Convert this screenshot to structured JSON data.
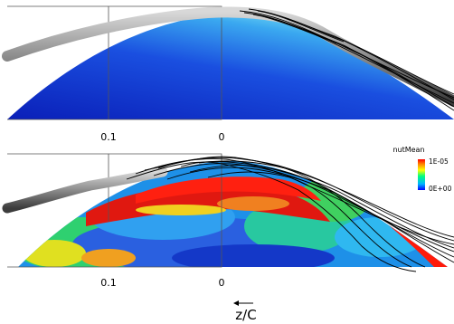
{
  "axes": {
    "top": {
      "tick_labels": [
        "0.1",
        "0"
      ]
    },
    "bottom": {
      "tick_labels": [
        "0.1",
        "0"
      ]
    },
    "direction_label": "z/C"
  },
  "colorbar": {
    "title": "nutMean",
    "max_label": "1E-05",
    "min_label": "0E+00",
    "colors": [
      "#0000ff",
      "#00b4ff",
      "#00ff80",
      "#ffff00",
      "#ff8000",
      "#ff0000"
    ]
  },
  "palette": {
    "top_surface_dark": "#0a24c8",
    "top_surface_light": "#5ad0f0",
    "vortex_tube": "#9a9a9a",
    "streamlines": "#000000"
  }
}
